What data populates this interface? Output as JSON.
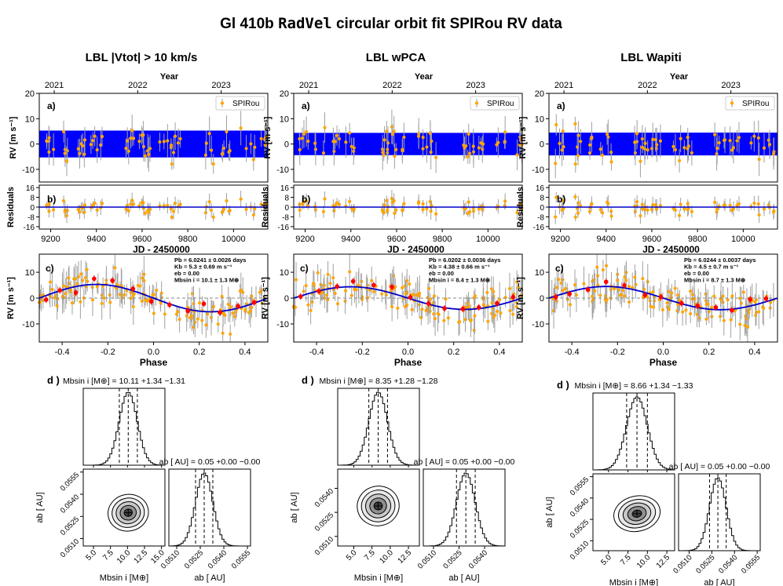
{
  "title": {
    "pre": "Gl 410b ",
    "code": "RadVel",
    "post": " circular orbit fit SPIRou RV data"
  },
  "colors": {
    "band": "#0000ff",
    "points": "#ffa500",
    "binned": "#ff0000",
    "model": "#0000cc",
    "errorbar": "#a0a0a0",
    "axes": "#000000"
  },
  "chart_data": [
    {
      "column_title": "LBL |Vtot| > 10 km/s",
      "type": "composite",
      "panel_a": {
        "label": "a)",
        "xlabel_top": "Year",
        "year_ticks": [
          "2021",
          "2022",
          "2023"
        ],
        "year_values": [
          2021,
          2022,
          2023
        ],
        "ylabel": "RV [m s⁻¹]",
        "ylim": [
          -15,
          20
        ],
        "yticks": [
          -10,
          0,
          10,
          20
        ],
        "legend": "SPIRou",
        "legend_pos": "top-right",
        "band_halfwidth": 5.3
      },
      "panel_b": {
        "label": "b)",
        "ylabel": "Residuals",
        "ylim": [
          -18,
          18
        ],
        "yticks": [
          -16,
          -8,
          0,
          8,
          16
        ],
        "xlabel": "JD - 2450000",
        "xlim": [
          9150,
          10150
        ],
        "xticks": [
          9200,
          9400,
          9600,
          9800,
          10000
        ]
      },
      "panel_c": {
        "label": "c)",
        "xlabel": "Phase",
        "ylabel": "RV [m s⁻¹]",
        "xlim": [
          -0.5,
          0.5
        ],
        "xticks": [
          -0.4,
          -0.2,
          0.0,
          0.2,
          0.4
        ],
        "ylim": [
          -17,
          17
        ],
        "yticks": [
          -10,
          0,
          10
        ],
        "amplitude": 5.3,
        "params": [
          "Pb = 6.0241 ± 0.0026 days",
          "Kb = 5.3 ± 0.69 m s⁻¹",
          "eb = 0.00",
          "Mbsin i = 10.1 ± 1.3 M⊕"
        ],
        "binned_phase": [
          -0.47,
          -0.41,
          -0.34,
          -0.26,
          -0.18,
          -0.09,
          -0.01,
          0.07,
          0.15,
          0.22,
          0.29,
          0.37,
          0.44
        ],
        "binned_rv": [
          -0.6,
          3.0,
          2.1,
          7.5,
          6.8,
          3.6,
          -1.3,
          -2.6,
          -5.0,
          -2.2,
          -5.6,
          -3.1,
          -1.7
        ]
      },
      "panel_d": {
        "label": "d )",
        "mass_title": "Mbsin i [M⊕] = 10.11 +1.34 −1.31",
        "a_title": "ab [ AU] = 0.05 +0.00 −0.00",
        "mass_axis_label": "Mbsin i [M⊕]",
        "a_axis_label": "ab [ AU]",
        "mass_median": 10.11,
        "mass_err_plus": 1.34,
        "mass_err_minus": 1.31,
        "mass_lim": [
          3.5,
          15.5
        ],
        "mass_ticks": [
          "5.0",
          "7.5",
          "10.0",
          "12.5",
          "15.0"
        ],
        "mass_tick_values": [
          5.0,
          7.5,
          10.0,
          12.5,
          15.0
        ],
        "a_median": 0.05275,
        "a_sigma": 0.00055,
        "a_lim": [
          0.0505,
          0.0557
        ],
        "a_ticks": [
          "0.0510",
          "0.0525",
          "0.0540",
          "0.0555"
        ],
        "a_tick_values": [
          0.051,
          0.0525,
          0.054,
          0.0555
        ]
      }
    },
    {
      "column_title": "LBL wPCA",
      "type": "composite",
      "panel_a": {
        "label": "a)",
        "xlabel_top": "Year",
        "year_ticks": [
          "2021",
          "2022",
          "2023"
        ],
        "year_values": [
          2021,
          2022,
          2023
        ],
        "ylabel": "RV [m s⁻¹]",
        "ylim": [
          -15,
          20
        ],
        "yticks": [
          -10,
          0,
          10,
          20
        ],
        "legend": "SPIRou",
        "legend_pos": "top-right",
        "band_halfwidth": 4.4
      },
      "panel_b": {
        "label": "b)",
        "ylabel": "Residuals",
        "ylim": [
          -18,
          18
        ],
        "yticks": [
          -16,
          -8,
          0,
          8,
          16
        ],
        "xlabel": "JD - 2450000",
        "xlim": [
          9150,
          10150
        ],
        "xticks": [
          9200,
          9400,
          9600,
          9800,
          10000
        ]
      },
      "panel_c": {
        "label": "c)",
        "xlabel": "Phase",
        "ylabel": "RV [m s⁻¹]",
        "xlim": [
          -0.5,
          0.5
        ],
        "xticks": [
          -0.4,
          -0.2,
          0.0,
          0.2,
          0.4
        ],
        "ylim": [
          -17,
          17
        ],
        "yticks": [
          -10,
          0,
          10
        ],
        "amplitude": 4.38,
        "params": [
          "Pb = 6.0202 ± 0.0036 days",
          "Kb = 4.38 ± 0.66 m s⁻¹",
          "eb = 0.00",
          "Mbsin i = 8.4 ± 1.3 M⊕"
        ],
        "binned_phase": [
          -0.47,
          -0.39,
          -0.31,
          -0.24,
          -0.15,
          -0.07,
          0.01,
          0.09,
          0.16,
          0.24,
          0.31,
          0.39,
          0.46
        ],
        "binned_rv": [
          0.6,
          2.7,
          4.5,
          6.5,
          5.0,
          4.3,
          0.3,
          -2.1,
          -4.0,
          -4.2,
          -3.6,
          -2.0,
          0.4
        ]
      },
      "panel_d": {
        "label": "d )",
        "mass_title": "Mbsin i [M⊕] = 8.35 +1.28 −1.28",
        "a_title": "ab [ AU] = 0.05 +0.00 −0.00",
        "mass_axis_label": "Mbsin i [M⊕]",
        "a_axis_label": "ab [ AU]",
        "mass_median": 8.35,
        "mass_err_plus": 1.28,
        "mass_err_minus": 1.28,
        "mass_lim": [
          2.8,
          14.0
        ],
        "mass_ticks": [
          "5.0",
          "7.5",
          "10.0",
          "12.5"
        ],
        "mass_tick_values": [
          5.0,
          7.5,
          10.0,
          12.5
        ],
        "a_median": 0.0529,
        "a_sigma": 0.00055,
        "a_lim": [
          0.0504,
          0.0552
        ],
        "a_ticks": [
          "0.0510",
          "0.0525",
          "0.0540"
        ],
        "a_tick_values": [
          0.051,
          0.0525,
          0.054
        ]
      }
    },
    {
      "column_title": "LBL Wapiti",
      "type": "composite",
      "panel_a": {
        "label": "a)",
        "xlabel_top": "Year",
        "year_ticks": [
          "2021",
          "2022",
          "2023"
        ],
        "year_values": [
          2021,
          2022,
          2023
        ],
        "ylabel": "RV [m s⁻¹]",
        "ylim": [
          -15,
          20
        ],
        "yticks": [
          -10,
          0,
          10,
          20
        ],
        "legend": "SPIRou",
        "legend_pos": "top-right",
        "band_halfwidth": 4.5
      },
      "panel_b": {
        "label": "b)",
        "ylabel": "Residuals",
        "ylim": [
          -18,
          18
        ],
        "yticks": [
          -16,
          -8,
          0,
          8,
          16
        ],
        "xlabel": "JD - 2450000",
        "xlim": [
          9150,
          10150
        ],
        "xticks": [
          9200,
          9400,
          9600,
          9800,
          10000
        ]
      },
      "panel_c": {
        "label": "c)",
        "xlabel": "Phase",
        "ylabel": "RV [m s⁻¹]",
        "xlim": [
          -0.5,
          0.5
        ],
        "xticks": [
          -0.4,
          -0.2,
          0.0,
          0.2,
          0.4
        ],
        "ylim": [
          -17,
          17
        ],
        "yticks": [
          -10,
          0,
          10
        ],
        "amplitude": 4.5,
        "params": [
          "Pb = 6.0244 ± 0.0037 days",
          "Kb = 4.5 ± 0.7 m s⁻¹",
          "eb = 0.00",
          "Mbsin i = 8.7 ± 1.3 M⊕"
        ],
        "binned_phase": [
          -0.47,
          -0.41,
          -0.33,
          -0.25,
          -0.17,
          -0.08,
          -0.01,
          0.08,
          0.15,
          0.23,
          0.3,
          0.38,
          0.45
        ],
        "binned_rv": [
          0.4,
          1.6,
          3.3,
          6.3,
          4.9,
          1.2,
          0.4,
          -2.0,
          -3.0,
          -3.6,
          -4.7,
          -0.5,
          -0.2
        ]
      },
      "panel_d": {
        "label": "d )",
        "mass_title": "Mbsin i [M⊕] = 8.66 +1.34 −1.33",
        "a_title": "ab [ AU] = 0.05 +0.00 −0.00",
        "mass_axis_label": "Mbsin i [M⊕]",
        "a_axis_label": "ab [ AU]",
        "mass_median": 8.66,
        "mass_err_plus": 1.34,
        "mass_err_minus": 1.33,
        "mass_lim": [
          3.0,
          13.5
        ],
        "mass_ticks": [
          "5.0",
          "7.5",
          "10.0",
          "12.5"
        ],
        "mass_tick_values": [
          5.0,
          7.5,
          10.0,
          12.5
        ],
        "a_median": 0.0529,
        "a_sigma": 0.00055,
        "a_lim": [
          0.0503,
          0.0557
        ],
        "a_ticks": [
          "0.0510",
          "0.0525",
          "0.0540",
          "0.0555"
        ],
        "a_tick_values": [
          0.051,
          0.0525,
          0.054,
          0.0555
        ]
      }
    }
  ]
}
